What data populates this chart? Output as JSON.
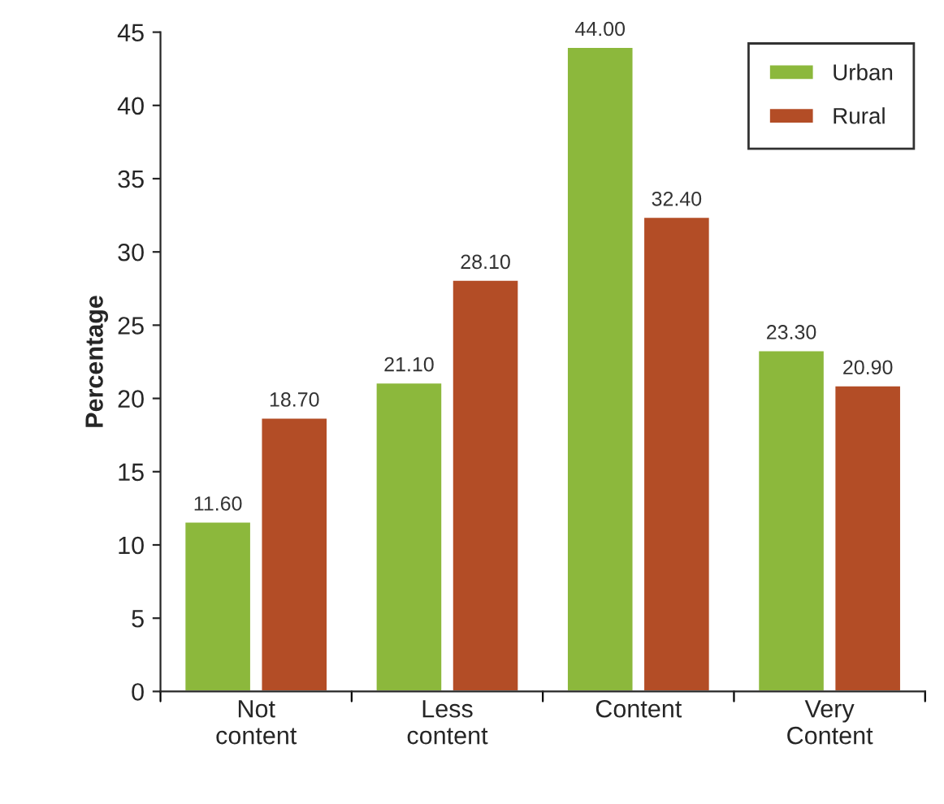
{
  "chart_data": {
    "type": "bar",
    "ylabel": "Percentage",
    "categories": [
      "Not\ncontent",
      "Less\ncontent",
      "Content",
      "Very\nContent"
    ],
    "series": [
      {
        "name": "Urban",
        "color": "#8cb83c",
        "values": [
          11.6,
          21.1,
          44.0,
          23.3
        ],
        "value_labels": [
          "11.60",
          "21.10",
          "44.00",
          "23.30"
        ]
      },
      {
        "name": "Rural",
        "color": "#b34d26",
        "values": [
          18.7,
          28.1,
          32.4,
          20.9
        ],
        "value_labels": [
          "18.70",
          "28.10",
          "32.40",
          "20.90"
        ]
      }
    ],
    "ylim": [
      0,
      45
    ],
    "yticks": [
      0,
      5,
      10,
      15,
      20,
      25,
      30,
      35,
      40,
      45
    ],
    "legend": "top right"
  }
}
